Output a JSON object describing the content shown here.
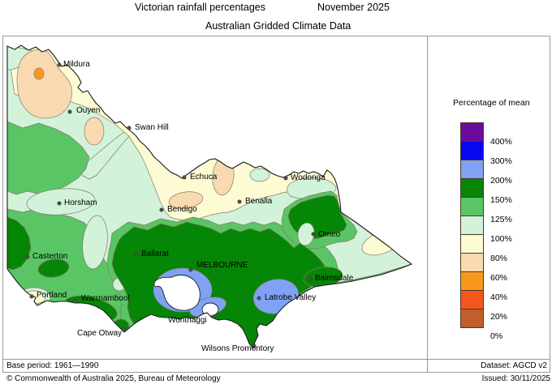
{
  "titles": {
    "main_left": "Victorian rainfall percentages",
    "main_right": "November 2025",
    "subtitle": "Australian Gridded Climate Data"
  },
  "legend": {
    "title": "Percentage of mean",
    "entries": [
      {
        "label": "400%",
        "color": "#6a0b9b"
      },
      {
        "label": "300%",
        "color": "#0808ef"
      },
      {
        "label": "200%",
        "color": "#7fa2f4"
      },
      {
        "label": "150%",
        "color": "#068606"
      },
      {
        "label": "125%",
        "color": "#5ac565"
      },
      {
        "label": "100%",
        "color": "#d2f3da"
      },
      {
        "label": "80%",
        "color": "#fdfbd4"
      },
      {
        "label": "60%",
        "color": "#f9d9af"
      },
      {
        "label": "40%",
        "color": "#f8991d"
      },
      {
        "label": "20%",
        "color": "#f4561e"
      },
      {
        "label": "0%",
        "color": "#c05f2c"
      }
    ]
  },
  "colors": {
    "sea": "#ffffff",
    "state_border": "#1c1c1c",
    "contour": "#85796a",
    "mint": "#d2f3da",
    "cream": "#fdfbd4",
    "peach": "#f9d9af",
    "orange": "#f8991d",
    "med_green": "#5ac565",
    "dark_green": "#068606",
    "light_blue": "#7fa2f4",
    "city_dot": "#4d4d4d"
  },
  "cities": [
    {
      "name": "Mildura",
      "dot": [
        73,
        80
      ],
      "label": [
        78,
        74
      ]
    },
    {
      "name": "Ouyen",
      "dot": [
        86,
        138
      ],
      "label": [
        94,
        131
      ]
    },
    {
      "name": "Swan Hill",
      "dot": [
        159,
        158
      ],
      "label": [
        166,
        152
      ]
    },
    {
      "name": "Echuca",
      "dot": [
        227,
        219
      ],
      "label": [
        234,
        213
      ]
    },
    {
      "name": "Wodonga",
      "dot": [
        352,
        220
      ],
      "label": [
        358,
        214
      ]
    },
    {
      "name": "Benalla",
      "dot": [
        295,
        249
      ],
      "label": [
        302,
        243
      ]
    },
    {
      "name": "Bendigo",
      "dot": [
        199,
        259
      ],
      "label": [
        206,
        253
      ]
    },
    {
      "name": "Horsham",
      "dot": [
        73,
        251
      ],
      "label": [
        79,
        245
      ]
    },
    {
      "name": "Casterton",
      "dot": [
        34,
        317
      ],
      "label": [
        40,
        311
      ]
    },
    {
      "name": "Ballarat",
      "dot": [
        168,
        314
      ],
      "label": [
        174,
        308
      ]
    },
    {
      "name": "Omeo",
      "dot": [
        386,
        289
      ],
      "label": [
        392,
        284
      ]
    },
    {
      "name": "MELBOURNE",
      "dot": [
        235,
        333
      ],
      "label": [
        242,
        322
      ]
    },
    {
      "name": "Bairnsdale",
      "dot": [
        382,
        344
      ],
      "label": [
        388,
        338
      ]
    },
    {
      "name": "Latrobe Valley",
      "dot": [
        319,
        368
      ],
      "label": [
        326,
        362
      ]
    },
    {
      "name": "Wonthaggi",
      "dot": [
        263,
        391
      ],
      "label": [
        207,
        390
      ]
    },
    {
      "name": "Warrnambool",
      "dot": [
        92,
        372
      ],
      "label": [
        100,
        363
      ]
    },
    {
      "name": "Portland",
      "dot": [
        39,
        366
      ],
      "label": [
        45,
        359
      ]
    },
    {
      "name": "Cape Otway",
      "dot": [
        153,
        407
      ],
      "label": [
        95,
        406
      ]
    },
    {
      "name": "Wilsons Promontory",
      "dot": [
        313,
        427
      ],
      "label": [
        248,
        425
      ]
    }
  ],
  "footer": {
    "base_period": "Base period: 1961—1990",
    "copyright": "© Commonwealth of Australia 2025, Bureau of Meteorology",
    "dataset": "Dataset: AGCD v2",
    "issued": "Issued: 30/11/2025"
  }
}
